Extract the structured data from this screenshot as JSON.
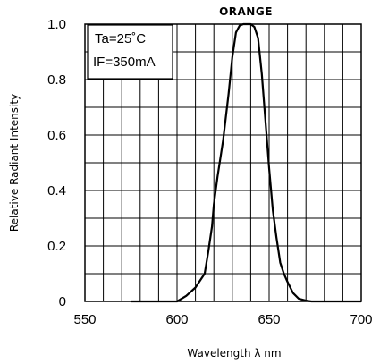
{
  "chart_data": {
    "type": "line",
    "title": "ORANGE",
    "xlabel": "Wavelength λ nm",
    "ylabel": "Relative Radiant Intensity",
    "xlim": [
      550,
      700
    ],
    "ylim": [
      0,
      1.0
    ],
    "x_ticks": [
      550,
      600,
      650,
      700
    ],
    "x_tick_labels": [
      "550",
      "600",
      "650",
      "700"
    ],
    "y_ticks": [
      0,
      0.2,
      0.4,
      0.6,
      0.8,
      1.0
    ],
    "y_tick_labels": [
      "0",
      "0.2",
      "0.4",
      "0.6",
      "0.8",
      "1.0"
    ],
    "grid": true,
    "annotations": [
      "Ta=25˚C",
      "IF=350mA"
    ],
    "series": [
      {
        "color": "#000000",
        "x": [
          575,
          590,
          600,
          605,
          610,
          615,
          617,
          619,
          620,
          622,
          625,
          628,
          630,
          632,
          634,
          636,
          638,
          640,
          642,
          644,
          646,
          648,
          650,
          652,
          654,
          656,
          658,
          660,
          663,
          666,
          670,
          673,
          680,
          690,
          700
        ],
        "y": [
          0.0,
          0.0,
          0.0,
          0.02,
          0.05,
          0.1,
          0.18,
          0.27,
          0.35,
          0.45,
          0.58,
          0.75,
          0.88,
          0.97,
          0.995,
          1.0,
          1.0,
          1.0,
          0.99,
          0.95,
          0.82,
          0.65,
          0.48,
          0.33,
          0.23,
          0.14,
          0.1,
          0.07,
          0.03,
          0.01,
          0.003,
          0.0,
          0.0,
          0.0,
          0.0
        ]
      }
    ]
  }
}
